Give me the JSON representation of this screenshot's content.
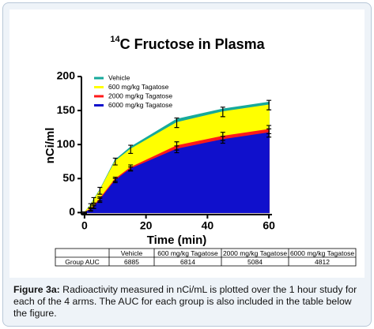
{
  "chart_data": {
    "type": "area",
    "title_superscript": "14",
    "title": "C Fructose in  Plasma",
    "x_label": "Time (min)",
    "y_label": "nCi/ml",
    "x": [
      0,
      2,
      3,
      5,
      10,
      15,
      30,
      45,
      60
    ],
    "xlim": [
      -1,
      61
    ],
    "xticks": [
      0,
      20,
      40,
      60
    ],
    "ylim": [
      -3,
      200
    ],
    "yticks": [
      0,
      50,
      100,
      150,
      200
    ],
    "legend": "top-left",
    "series": [
      {
        "name": "Vehicle",
        "color": "#16a99b",
        "values": [
          0,
          11,
          19,
          33,
          77,
          96,
          137,
          152,
          162
        ]
      },
      {
        "name": "600 mg/kg Tagatose",
        "color": "#ffff00",
        "values": [
          0,
          10,
          18,
          32,
          75,
          93,
          132,
          148,
          158
        ],
        "errors": [
          1,
          3,
          4,
          5,
          5,
          6,
          7,
          7,
          7
        ]
      },
      {
        "name": "2000 mg/kg Tagatose",
        "color": "#ff1a1a",
        "values": [
          0,
          5,
          9,
          20,
          49,
          66,
          98,
          112,
          122
        ],
        "errors": [
          1,
          2,
          3,
          3,
          3,
          4,
          6,
          6,
          6
        ]
      },
      {
        "name": "6000 mg/kg Tagatose",
        "color": "#1010cc",
        "values": [
          0,
          4,
          8,
          18,
          47,
          64,
          93,
          107,
          117
        ],
        "errors": [
          1,
          2,
          2,
          3,
          3,
          3,
          5,
          5,
          6
        ]
      }
    ]
  },
  "table": {
    "columns": [
      "Vehicle",
      "600 mg/kg Tagatose",
      "2000 mg/kg Tagatose",
      "6000 mg/kg Tagatose"
    ],
    "row_label": "Group AUC",
    "values": [
      "6885",
      "6814",
      "5084",
      "4812"
    ]
  },
  "caption": {
    "label": "Figure 3a:",
    "text": " Radioactivity measured in nCi/mL is plotted over the 1 hour study for each of the 4 arms.  The AUC for each group is also included in the table below the figure."
  }
}
